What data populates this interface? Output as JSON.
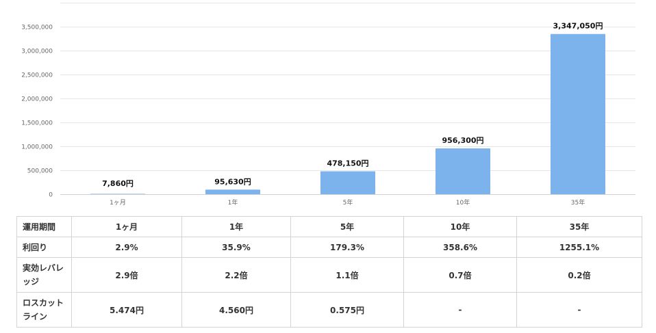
{
  "chart_data": {
    "type": "bar",
    "categories": [
      "1ヶ月",
      "1年",
      "5年",
      "10年",
      "35年"
    ],
    "values": [
      7860,
      95630,
      478150,
      956300,
      3347050
    ],
    "data_labels": [
      "7,860円",
      "95,630円",
      "478,150円",
      "956,300円",
      "3,347,050円"
    ],
    "y_ticks": [
      0,
      500000,
      1000000,
      1500000,
      2000000,
      2500000,
      3000000,
      3500000
    ],
    "y_tick_labels": [
      "0",
      "500,000",
      "1,000,000",
      "1,500,000",
      "2,000,000",
      "2,500,000",
      "3,000,000",
      "3,500,000"
    ],
    "ylim": [
      0,
      3500000
    ],
    "bar_color": "#7cb3ec",
    "grid": true
  },
  "table": {
    "columns": [
      "運用期間",
      "1ヶ月",
      "1年",
      "5年",
      "10年",
      "35年"
    ],
    "rows": [
      {
        "label": "利回り",
        "values": [
          "2.9%",
          "35.9%",
          "179.3%",
          "358.6%",
          "1255.1%"
        ]
      },
      {
        "label": "実効レバレッジ",
        "values": [
          "2.9倍",
          "2.2倍",
          "1.1倍",
          "0.7倍",
          "0.2倍"
        ]
      },
      {
        "label": "ロスカットライン",
        "values": [
          "5.474円",
          "4.560円",
          "0.575円",
          "-",
          "-"
        ]
      }
    ]
  }
}
